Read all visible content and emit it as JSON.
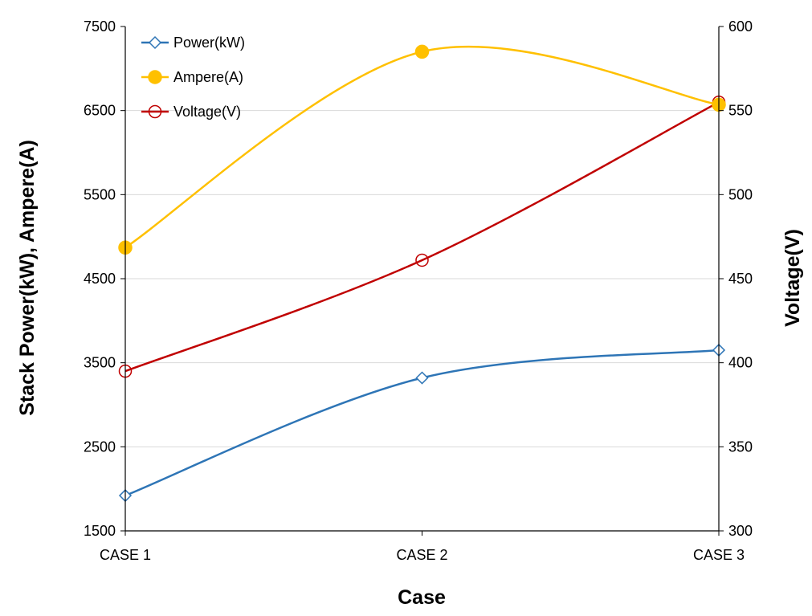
{
  "chart_data": {
    "type": "line",
    "title": "",
    "xlabel": "Case",
    "ylabel_left": "Stack Power(kW), Ampere(A)",
    "ylabel_right": "Voltage(V)",
    "categories": [
      "CASE 1",
      "CASE 2",
      "CASE 3"
    ],
    "ylim_left": [
      1500,
      7500
    ],
    "yticks_left": [
      "1500",
      "2500",
      "3500",
      "4500",
      "5500",
      "6500",
      "7500"
    ],
    "ylim_right": [
      300,
      600
    ],
    "yticks_right": [
      "300",
      "350",
      "400",
      "450",
      "500",
      "550",
      "600"
    ],
    "grid": true,
    "legend_position": "top-left",
    "series": [
      {
        "name": "Power(kW)",
        "axis": "left",
        "values": [
          1920,
          3320,
          3650
        ],
        "color": "#2e75b6",
        "marker": "diamond-open"
      },
      {
        "name": "Ampere(A)",
        "axis": "left",
        "values": [
          4870,
          7200,
          6570
        ],
        "color": "#ffc000",
        "marker": "circle-filled"
      },
      {
        "name": "Voltage(V)",
        "axis": "right",
        "values": [
          395,
          461,
          555
        ],
        "color": "#c00000",
        "marker": "circle-open"
      }
    ]
  }
}
